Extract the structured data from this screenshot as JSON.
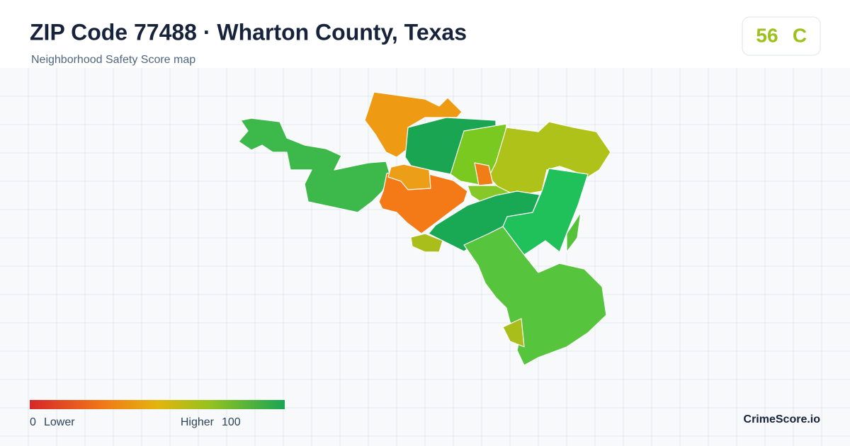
{
  "header": {
    "title": "ZIP Code 77488 · Wharton County, Texas",
    "subtitle": "Neighborhood Safety Score map"
  },
  "badge": {
    "score": "56",
    "grade": "C"
  },
  "legend": {
    "min": "0",
    "min_label": "Lower",
    "max_label": "Higher",
    "max": "100"
  },
  "brand": "CrimeScore.io"
}
